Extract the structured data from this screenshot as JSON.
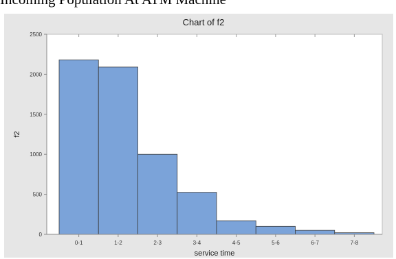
{
  "page": {
    "heading": "Incoming Population At ATM Machine"
  },
  "chart_data": {
    "type": "bar",
    "title": "Chart of f2",
    "xlabel": "service time",
    "ylabel": "f2",
    "categories": [
      "0-1",
      "1-2",
      "2-3",
      "3-4",
      "4-5",
      "5-6",
      "6-7",
      "7-8"
    ],
    "values": [
      2180,
      2090,
      1000,
      525,
      170,
      100,
      50,
      20
    ],
    "ylim": [
      0,
      2500
    ],
    "yticks": [
      0,
      500,
      1000,
      1500,
      2000,
      2500
    ],
    "ytick_labels": [
      "0",
      "500",
      "1000",
      "1500",
      "2000",
      "2500"
    ],
    "grid": false,
    "bar_color": "#7ba3d9",
    "bar_edge_color": "#3a3a3a",
    "plot_background": "#ffffff",
    "frame_background": "#e6e6e6"
  }
}
